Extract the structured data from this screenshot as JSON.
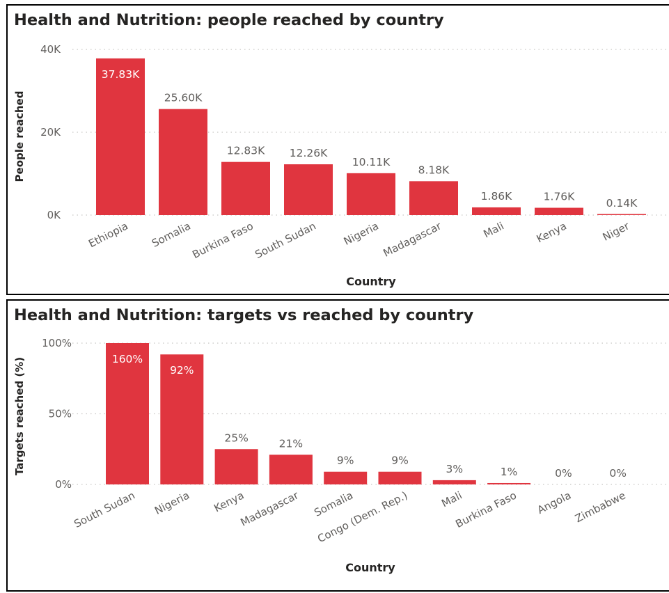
{
  "chart_data": [
    {
      "type": "bar",
      "title": "Health and Nutrition: people reached by country",
      "xlabel": "Country",
      "ylabel": "People reached",
      "categories": [
        "Ethiopia",
        "Somalia",
        "Burkina Faso",
        "South Sudan",
        "Nigeria",
        "Madagascar",
        "Mali",
        "Kenya",
        "Niger"
      ],
      "values": [
        37830,
        25600,
        12830,
        12260,
        10110,
        8180,
        1860,
        1760,
        140
      ],
      "data_labels": [
        "37.83K",
        "25.60K",
        "12.83K",
        "12.26K",
        "10.11K",
        "8.18K",
        "1.86K",
        "1.76K",
        "0.14K"
      ],
      "inside_labels": 1,
      "ylim": [
        0,
        40000
      ],
      "yticks": [
        0,
        20000,
        40000
      ],
      "ytick_labels": [
        "0K",
        "20K",
        "40K"
      ],
      "grid": true,
      "bar_color": "#e0353f"
    },
    {
      "type": "bar",
      "title": "Health and Nutrition: targets vs reached by country",
      "xlabel": "Country",
      "ylabel": "Targets reached (%)",
      "categories": [
        "South Sudan",
        "Nigeria",
        "Kenya",
        "Madagascar",
        "Somalia",
        "Congo (Dem. Rep.)",
        "Mali",
        "Burkina Faso",
        "Angola",
        "Zimbabwe"
      ],
      "values": [
        160,
        92,
        25,
        21,
        9,
        9,
        3,
        1,
        0,
        0
      ],
      "data_labels": [
        "160%",
        "92%",
        "25%",
        "21%",
        "9%",
        "9%",
        "3%",
        "1%",
        "0%",
        "0%"
      ],
      "inside_labels": 2,
      "ylim": [
        0,
        100
      ],
      "yticks": [
        0,
        50,
        100
      ],
      "ytick_labels": [
        "0%",
        "50%",
        "100%"
      ],
      "grid": true,
      "bar_color": "#e0353f"
    }
  ]
}
